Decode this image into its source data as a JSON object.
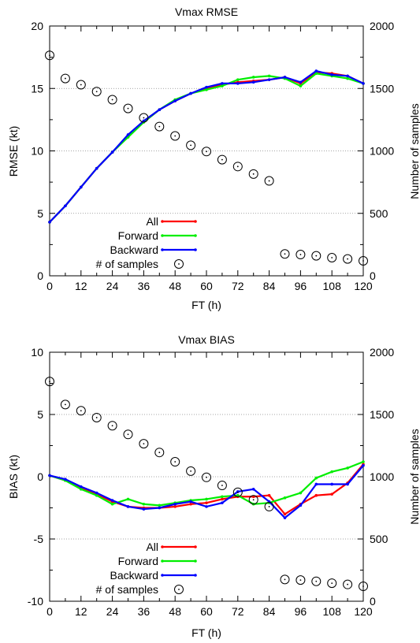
{
  "chart_data": [
    {
      "type": "line",
      "title": "Vmax RMSE",
      "xlabel": "FT (h)",
      "ylabel": "RMSE (kt)",
      "y2label": "Number of samples",
      "x_ticks": [
        "0",
        "12",
        "24",
        "36",
        "48",
        "60",
        "72",
        "84",
        "96",
        "108",
        "120"
      ],
      "y_ticks": [
        "0",
        "5",
        "10",
        "15",
        "20"
      ],
      "y2_ticks": [
        "0",
        "500",
        "1000",
        "1500",
        "2000"
      ],
      "xlim": [
        0,
        120
      ],
      "ylim": [
        0,
        20
      ],
      "y2lim": [
        0,
        2000
      ],
      "grid": "horizontal dotted at left-axis major ticks",
      "legend_position": "bottom-left",
      "x": [
        0,
        6,
        12,
        18,
        24,
        30,
        36,
        42,
        48,
        54,
        60,
        66,
        72,
        78,
        84,
        90,
        96,
        102,
        108,
        114,
        120
      ],
      "series": [
        {
          "name": "All",
          "color": "#ff0000",
          "axis": "left",
          "values": [
            4.3,
            5.6,
            7.1,
            8.6,
            9.9,
            11.2,
            12.3,
            13.3,
            14.0,
            14.6,
            15.0,
            15.3,
            15.5,
            15.6,
            15.7,
            15.9,
            15.4,
            16.3,
            16.2,
            16.0,
            15.4
          ]
        },
        {
          "name": "Forward",
          "color": "#00ee00",
          "axis": "left",
          "values": [
            4.3,
            5.6,
            7.1,
            8.6,
            9.9,
            11.1,
            12.3,
            13.3,
            14.1,
            14.6,
            14.9,
            15.2,
            15.7,
            15.9,
            16.0,
            15.8,
            15.2,
            16.2,
            16.0,
            15.8,
            15.4
          ]
        },
        {
          "name": "Backward",
          "color": "#0000ff",
          "axis": "left",
          "values": [
            4.3,
            5.6,
            7.1,
            8.6,
            9.9,
            11.3,
            12.4,
            13.3,
            14.0,
            14.6,
            15.1,
            15.4,
            15.4,
            15.5,
            15.7,
            15.9,
            15.5,
            16.4,
            16.1,
            16.0,
            15.4
          ]
        },
        {
          "name": "# of samples",
          "marker": "circle-dot",
          "axis": "right",
          "x": [
            0,
            6,
            12,
            18,
            24,
            30,
            36,
            42,
            48,
            54,
            60,
            66,
            72,
            78,
            84,
            90,
            96,
            102,
            108,
            114,
            120
          ],
          "values": [
            1765,
            1580,
            1530,
            1475,
            1410,
            1340,
            1265,
            1195,
            1120,
            1045,
            995,
            930,
            875,
            815,
            760,
            175,
            170,
            160,
            145,
            135,
            120
          ]
        }
      ]
    },
    {
      "type": "line",
      "title": "Vmax BIAS",
      "xlabel": "FT (h)",
      "ylabel": "BIAS (kt)",
      "y2label": "Number of samples",
      "x_ticks": [
        "0",
        "12",
        "24",
        "36",
        "48",
        "60",
        "72",
        "84",
        "96",
        "108",
        "120"
      ],
      "y_ticks": [
        "-10",
        "-5",
        "0",
        "5",
        "10"
      ],
      "y2_ticks": [
        "0",
        "500",
        "1000",
        "1500",
        "2000"
      ],
      "xlim": [
        0,
        120
      ],
      "ylim": [
        -10,
        10
      ],
      "y2lim": [
        0,
        2000
      ],
      "grid": "horizontal dotted at left-axis major ticks",
      "legend_position": "bottom-left",
      "x": [
        0,
        6,
        12,
        18,
        24,
        30,
        36,
        42,
        48,
        54,
        60,
        66,
        72,
        78,
        84,
        90,
        96,
        102,
        108,
        114,
        120
      ],
      "series": [
        {
          "name": "All",
          "color": "#ff0000",
          "axis": "left",
          "values": [
            0.1,
            -0.3,
            -0.9,
            -1.4,
            -2.0,
            -2.4,
            -2.5,
            -2.5,
            -2.4,
            -2.2,
            -2.1,
            -1.8,
            -1.6,
            -1.6,
            -1.5,
            -3.0,
            -2.2,
            -1.5,
            -1.4,
            -0.5,
            1.0
          ]
        },
        {
          "name": "Forward",
          "color": "#00ee00",
          "axis": "left",
          "values": [
            0.1,
            -0.3,
            -1.0,
            -1.5,
            -2.2,
            -1.8,
            -2.2,
            -2.3,
            -2.1,
            -1.9,
            -1.8,
            -1.6,
            -1.5,
            -2.2,
            -2.1,
            -1.7,
            -1.3,
            -0.1,
            0.4,
            0.7,
            1.2
          ]
        },
        {
          "name": "Backward",
          "color": "#0000ff",
          "axis": "left",
          "values": [
            0.1,
            -0.2,
            -0.8,
            -1.3,
            -1.9,
            -2.4,
            -2.6,
            -2.5,
            -2.2,
            -2.0,
            -2.4,
            -2.1,
            -1.2,
            -1.0,
            -2.0,
            -3.3,
            -2.3,
            -0.6,
            -0.6,
            -0.6,
            0.9
          ]
        },
        {
          "name": "# of samples",
          "marker": "circle-dot",
          "axis": "right",
          "x": [
            0,
            6,
            12,
            18,
            24,
            30,
            36,
            42,
            48,
            54,
            60,
            66,
            72,
            78,
            84,
            90,
            96,
            102,
            108,
            114,
            120
          ],
          "values": [
            1765,
            1580,
            1530,
            1475,
            1410,
            1340,
            1265,
            1195,
            1120,
            1045,
            995,
            930,
            875,
            815,
            760,
            175,
            170,
            160,
            145,
            135,
            120
          ]
        }
      ]
    }
  ]
}
